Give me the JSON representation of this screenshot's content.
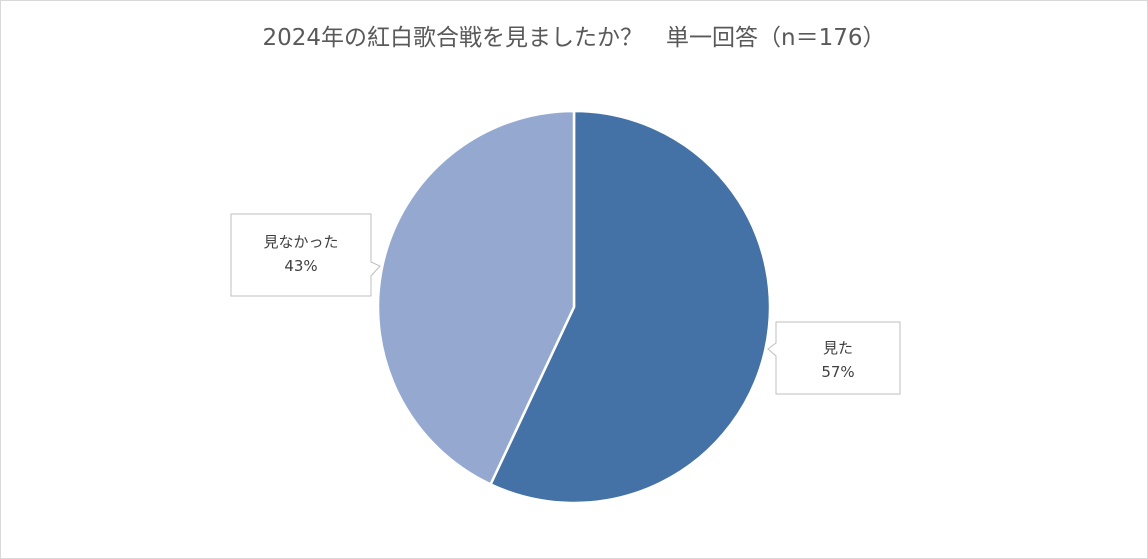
{
  "chart_data": {
    "type": "pie",
    "title": "2024年の紅白歌合戦を見ましたか？　単一回答（n＝176）",
    "slices": [
      {
        "label": "見た",
        "value": 57,
        "value_label": "57%",
        "color": "#4472a6"
      },
      {
        "label": "見なかった",
        "value": 43,
        "value_label": "43%",
        "color": "#95a9d0"
      }
    ],
    "start_angle_deg": 0,
    "direction": "clockwise",
    "label_style": "callout"
  }
}
